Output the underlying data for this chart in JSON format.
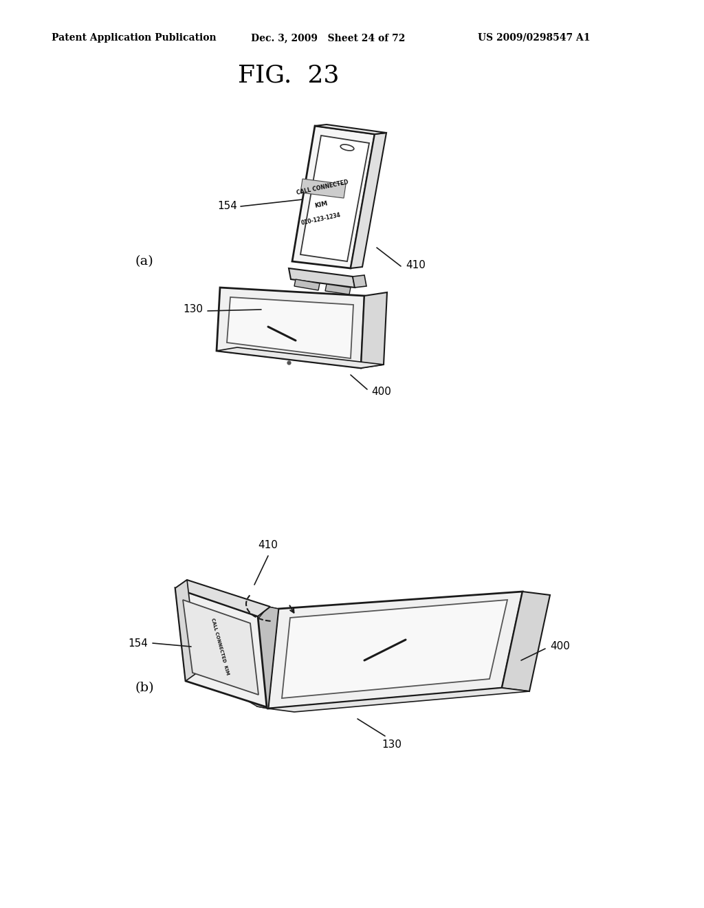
{
  "background_color": "#ffffff",
  "header_left": "Patent Application Publication",
  "header_mid": "Dec. 3, 2009   Sheet 24 of 72",
  "header_right": "US 2009/0298547 A1",
  "fig_title": "FIG.  23",
  "label_a": "(a)",
  "label_b": "(b)",
  "line_color": "#1a1a1a",
  "text_color": "#000000",
  "header_fontsize": 10,
  "fig_title_fontsize": 26,
  "label_fontsize": 14,
  "ref_fontsize": 11
}
